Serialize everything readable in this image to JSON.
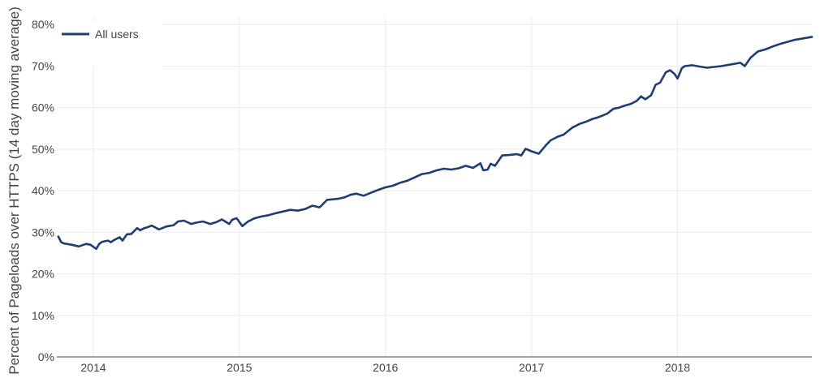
{
  "chart_data": {
    "type": "line",
    "title": "",
    "xlabel": "",
    "ylabel": "Percent of Pageloads over HTTPS (14 day moving average)",
    "x_ticks": [
      "2014",
      "2015",
      "2016",
      "2017",
      "2018"
    ],
    "y_ticks": [
      "0%",
      "10%",
      "20%",
      "30%",
      "40%",
      "50%",
      "60%",
      "70%",
      "80%"
    ],
    "xlim": [
      2013.75,
      2018.92
    ],
    "ylim": [
      0,
      82
    ],
    "grid": true,
    "legend_position": "top-left",
    "series": [
      {
        "name": "All users",
        "color": "#1f3d6e",
        "x": [
          2013.76,
          2013.78,
          2013.8,
          2013.85,
          2013.9,
          2013.95,
          2013.98,
          2014.0,
          2014.02,
          2014.04,
          2014.06,
          2014.1,
          2014.12,
          2014.14,
          2014.18,
          2014.2,
          2014.23,
          2014.26,
          2014.3,
          2014.32,
          2014.35,
          2014.37,
          2014.4,
          2014.45,
          2014.5,
          2014.55,
          2014.58,
          2014.62,
          2014.67,
          2014.7,
          2014.75,
          2014.8,
          2014.84,
          2014.88,
          2014.93,
          2014.95,
          2014.98,
          2015.02,
          2015.06,
          2015.1,
          2015.15,
          2015.2,
          2015.25,
          2015.3,
          2015.35,
          2015.4,
          2015.45,
          2015.5,
          2015.55,
          2015.6,
          2015.68,
          2015.72,
          2015.76,
          2015.8,
          2015.85,
          2015.9,
          2015.95,
          2016.0,
          2016.05,
          2016.1,
          2016.15,
          2016.2,
          2016.25,
          2016.3,
          2016.35,
          2016.4,
          2016.45,
          2016.5,
          2016.55,
          2016.6,
          2016.65,
          2016.67,
          2016.7,
          2016.72,
          2016.75,
          2016.8,
          2016.85,
          2016.9,
          2016.93,
          2016.96,
          2017.0,
          2017.05,
          2017.1,
          2017.13,
          2017.18,
          2017.22,
          2017.28,
          2017.33,
          2017.38,
          2017.42,
          2017.45,
          2017.48,
          2017.52,
          2017.56,
          2017.6,
          2017.64,
          2017.68,
          2017.72,
          2017.75,
          2017.78,
          2017.82,
          2017.85,
          2017.88,
          2017.92,
          2017.95,
          2017.98,
          2018.0,
          2018.03,
          2018.05,
          2018.1,
          2018.15,
          2018.2,
          2018.25,
          2018.3,
          2018.35,
          2018.4,
          2018.43,
          2018.46,
          2018.5,
          2018.55,
          2018.6,
          2018.65,
          2018.7,
          2018.75,
          2018.8,
          2018.85,
          2018.9,
          2018.92
        ],
        "y": [
          29.0,
          27.6,
          27.3,
          27.0,
          26.6,
          27.2,
          27.0,
          26.5,
          26.0,
          27.2,
          27.7,
          28.0,
          27.6,
          28.1,
          28.8,
          28.0,
          29.5,
          29.6,
          31.0,
          30.5,
          31.0,
          31.2,
          31.6,
          30.7,
          31.4,
          31.7,
          32.6,
          32.8,
          32.0,
          32.3,
          32.6,
          32.0,
          32.4,
          33.1,
          32.0,
          33.0,
          33.4,
          31.5,
          32.6,
          33.3,
          33.8,
          34.1,
          34.6,
          35.0,
          35.4,
          35.2,
          35.6,
          36.4,
          36.0,
          37.8,
          38.1,
          38.4,
          39.0,
          39.3,
          38.8,
          39.5,
          40.2,
          40.8,
          41.2,
          41.9,
          42.4,
          43.2,
          44.0,
          44.3,
          44.9,
          45.3,
          45.1,
          45.4,
          46.0,
          45.5,
          46.6,
          44.9,
          45.1,
          46.5,
          46.0,
          48.5,
          48.6,
          48.8,
          48.5,
          50.1,
          49.5,
          48.9,
          51.0,
          52.1,
          53.0,
          53.5,
          55.2,
          56.1,
          56.7,
          57.3,
          57.6,
          58.0,
          58.6,
          59.7,
          60.0,
          60.5,
          60.9,
          61.6,
          62.7,
          62.0,
          63.0,
          65.5,
          66.0,
          68.5,
          69.0,
          68.1,
          67.0,
          69.5,
          70.0,
          70.2,
          69.9,
          69.6,
          69.8,
          70.0,
          70.3,
          70.6,
          70.8,
          70.0,
          72.0,
          73.5,
          74.0,
          74.7,
          75.3,
          75.8,
          76.3,
          76.6,
          76.9,
          77.0
        ]
      }
    ]
  }
}
